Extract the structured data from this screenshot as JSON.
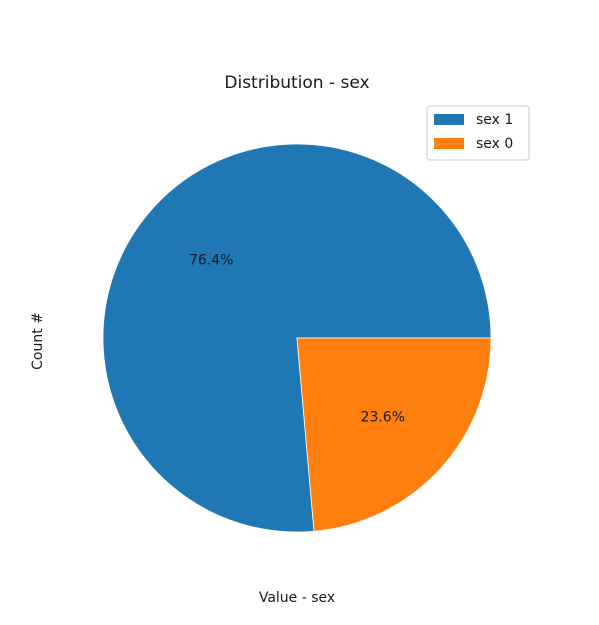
{
  "chart_data": {
    "type": "pie",
    "title": "Distribution - sex",
    "xlabel": "Value - sex",
    "ylabel": "Count #",
    "labels": [
      "sex 1",
      "sex 0"
    ],
    "values": [
      76.4,
      23.6
    ],
    "percent_labels": [
      "76.4%",
      "23.6%"
    ],
    "colors": [
      "#1f77b4",
      "#ff7f0e"
    ],
    "start_angle_deg": 0,
    "direction": "counterclockwise",
    "legend": {
      "position": "top-right",
      "entries": [
        "sex 1",
        "sex 0"
      ]
    }
  }
}
